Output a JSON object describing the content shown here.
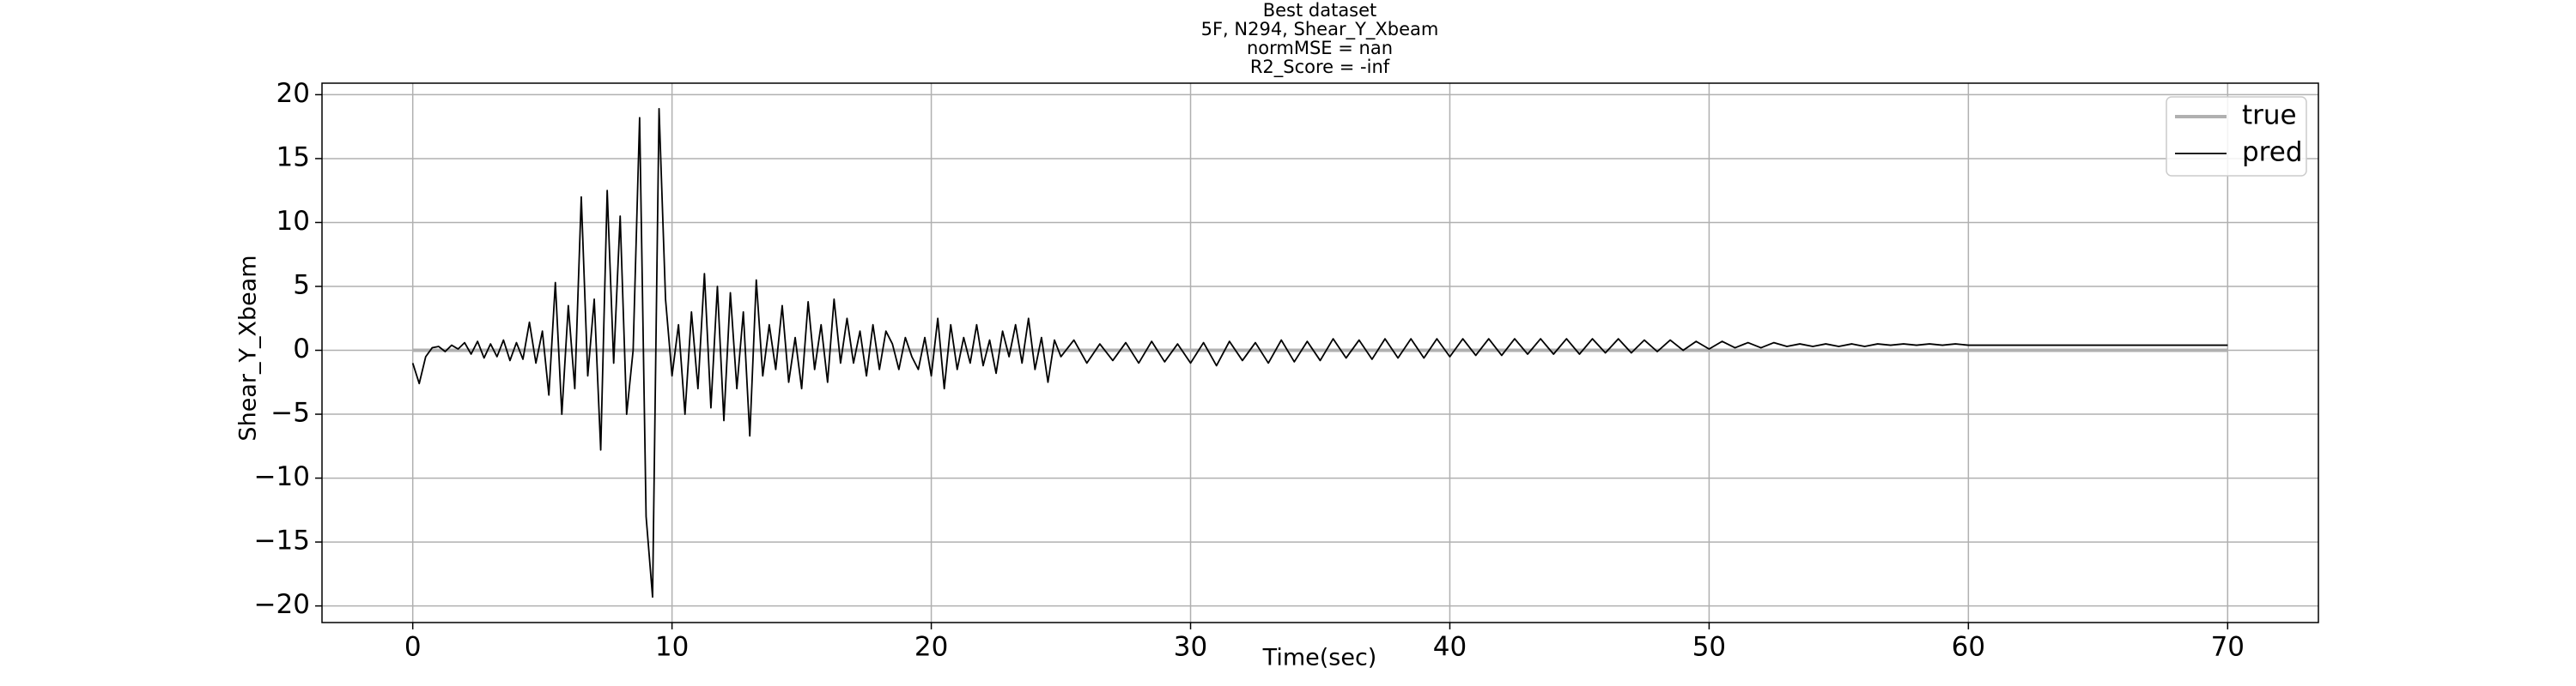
{
  "chart_data": {
    "type": "line",
    "title": [
      "Best dataset",
      "5F, N294, Shear_Y_Xbeam",
      "normMSE = nan",
      "R2_Score = -inf"
    ],
    "xlabel": "Time(sec)",
    "ylabel": "Shear_Y_Xbeam",
    "xlim": [
      -3.5,
      73.5
    ],
    "ylim": [
      -21.3,
      20.9
    ],
    "xticks": [
      0,
      10,
      20,
      30,
      40,
      50,
      60,
      70
    ],
    "yticks": [
      {
        "value": -20,
        "label": "−20"
      },
      {
        "value": -15,
        "label": "−15"
      },
      {
        "value": -10,
        "label": "−10"
      },
      {
        "value": -5,
        "label": "−5"
      },
      0,
      5,
      10,
      15,
      20
    ],
    "grid": true,
    "legend": "upper right",
    "x": [
      0,
      0.25,
      0.5,
      0.75,
      1,
      1.25,
      1.5,
      1.75,
      2,
      2.25,
      2.5,
      2.75,
      3,
      3.25,
      3.5,
      3.75,
      4,
      4.25,
      4.5,
      4.75,
      5,
      5.25,
      5.5,
      5.75,
      6,
      6.25,
      6.5,
      6.75,
      7,
      7.25,
      7.5,
      7.75,
      8,
      8.25,
      8.5,
      8.75,
      9,
      9.25,
      9.5,
      9.75,
      10,
      10.25,
      10.5,
      10.75,
      11,
      11.25,
      11.5,
      11.75,
      12,
      12.25,
      12.5,
      12.75,
      13,
      13.25,
      13.5,
      13.75,
      14,
      14.25,
      14.5,
      14.75,
      15,
      15.25,
      15.5,
      15.75,
      16,
      16.25,
      16.5,
      16.75,
      17,
      17.25,
      17.5,
      17.75,
      18,
      18.25,
      18.5,
      18.75,
      19,
      19.25,
      19.5,
      19.75,
      20,
      20.25,
      20.5,
      20.75,
      21,
      21.25,
      21.5,
      21.75,
      22,
      22.25,
      22.5,
      22.75,
      23,
      23.25,
      23.5,
      23.75,
      24,
      24.25,
      24.5,
      24.75,
      25,
      25.5,
      26,
      26.5,
      27,
      27.5,
      28,
      28.5,
      29,
      29.5,
      30,
      30.5,
      31,
      31.5,
      32,
      32.5,
      33,
      33.5,
      34,
      34.5,
      35,
      35.5,
      36,
      36.5,
      37,
      37.5,
      38,
      38.5,
      39,
      39.5,
      40,
      40.5,
      41,
      41.5,
      42,
      42.5,
      43,
      43.5,
      44,
      44.5,
      45,
      45.5,
      46,
      46.5,
      47,
      47.5,
      48,
      48.5,
      49,
      49.5,
      50,
      50.5,
      51,
      51.5,
      52,
      52.5,
      53,
      53.5,
      54,
      54.5,
      55,
      55.5,
      56,
      56.5,
      57,
      57.5,
      58,
      58.5,
      59,
      59.5,
      60,
      60.5,
      61,
      61.5,
      62,
      62.5,
      63,
      63.5,
      64,
      64.5,
      65,
      65.5,
      66,
      66.5,
      67,
      67.5,
      68,
      68.5,
      69,
      69.5,
      70
    ],
    "series": [
      {
        "name": "true",
        "color": "#b0b0b0",
        "x": [
          0,
          70
        ],
        "values": [
          0,
          0
        ]
      },
      {
        "name": "pred",
        "color": "#000000",
        "values": [
          -1,
          -2.6,
          -0.5,
          0.2,
          0.3,
          -0.1,
          0.4,
          0.1,
          0.6,
          -0.3,
          0.7,
          -0.6,
          0.5,
          -0.5,
          0.8,
          -0.8,
          0.6,
          -0.7,
          2.2,
          -1,
          1.5,
          -3.5,
          5.3,
          -5,
          3.5,
          -3,
          12,
          -2,
          4,
          -7.8,
          12.5,
          -1,
          10.5,
          -5,
          0,
          18.2,
          -13,
          -19.3,
          18.9,
          4,
          -2,
          2,
          -5,
          3,
          -3,
          6,
          -4.5,
          5,
          -5.5,
          4.5,
          -3,
          3,
          -6.7,
          5.5,
          -2,
          2,
          -1.5,
          3.5,
          -2.5,
          1,
          -3,
          3.8,
          -1.5,
          2,
          -2.5,
          4,
          -1,
          2.5,
          -1,
          1.5,
          -2,
          2,
          -1.5,
          1.5,
          0.5,
          -1.5,
          1,
          -0.5,
          -1.5,
          1,
          -2,
          2.5,
          -3,
          2,
          -1.5,
          1,
          -1,
          2,
          -1.2,
          0.8,
          -1.8,
          1.5,
          -0.5,
          2,
          -1,
          2.5,
          -1.5,
          1,
          -2.5,
          0.8,
          -0.5,
          0.8,
          -1,
          0.5,
          -0.8,
          0.6,
          -1,
          0.7,
          -0.9,
          0.5,
          -1,
          0.6,
          -1.2,
          0.7,
          -0.8,
          0.6,
          -1,
          0.8,
          -0.9,
          0.7,
          -0.8,
          0.9,
          -0.6,
          0.8,
          -0.7,
          0.9,
          -0.6,
          0.9,
          -0.6,
          0.9,
          -0.5,
          0.9,
          -0.4,
          0.9,
          -0.4,
          0.9,
          -0.3,
          0.9,
          -0.3,
          0.9,
          -0.3,
          0.9,
          -0.2,
          0.9,
          -0.2,
          0.8,
          -0.1,
          0.8,
          0,
          0.7,
          0.1,
          0.7,
          0.2,
          0.6,
          0.2,
          0.6,
          0.3,
          0.5,
          0.3,
          0.5,
          0.3,
          0.5,
          0.3,
          0.5,
          0.4,
          0.5,
          0.4,
          0.5,
          0.4,
          0.5,
          0.4,
          0.4,
          0.4,
          0.4,
          0.4,
          0.4,
          0.4,
          0.4,
          0.4,
          0.4,
          0.4,
          0.4,
          0.4,
          0.4,
          0.4,
          0.4,
          0.4,
          0.4,
          0.4,
          0.4,
          0.4
        ]
      }
    ]
  }
}
